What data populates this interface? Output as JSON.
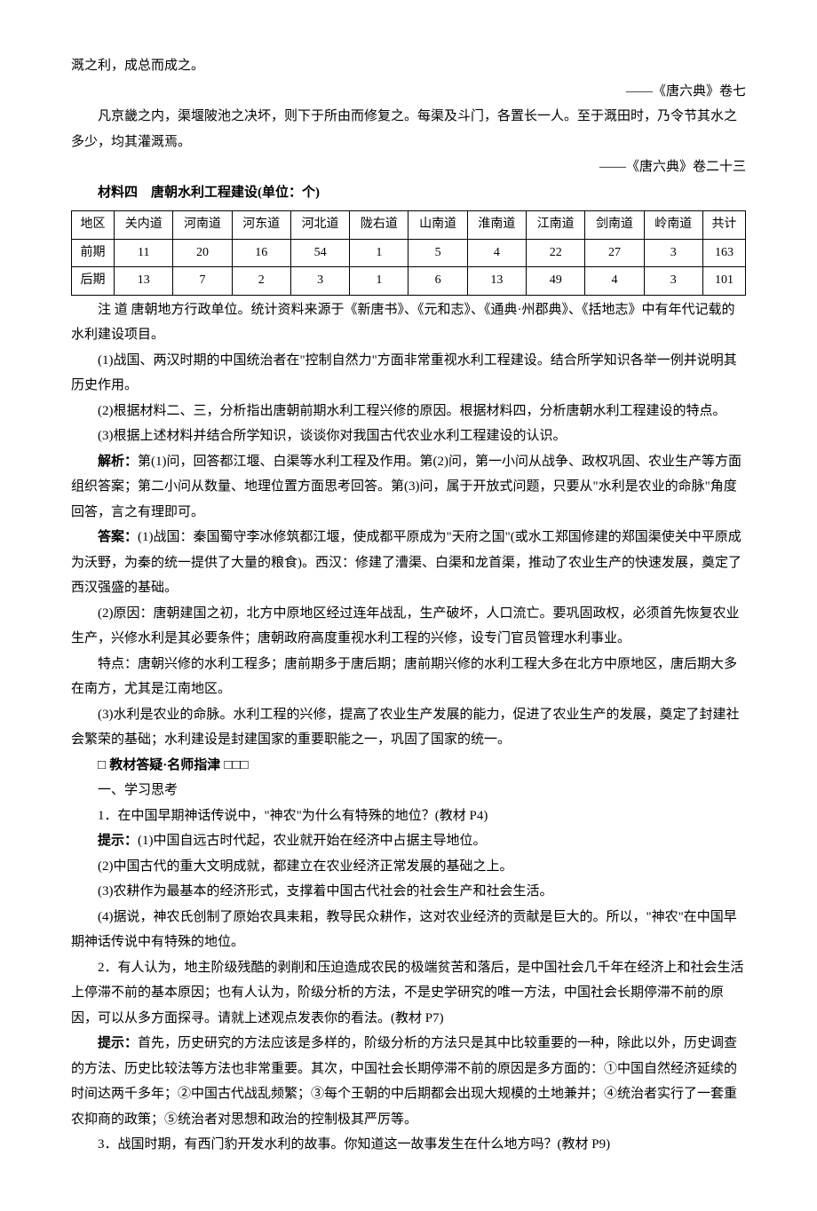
{
  "para1": "溉之利，成总而成之。",
  "cite1": "——《唐六典》卷七",
  "para2": "凡京畿之内，渠堰陂池之决坏，则下于所由而修复之。每渠及斗门，各置长一人。至于溉田时，乃令节其水之多少，均其灌溉焉。",
  "cite2": "——《唐六典》卷二十三",
  "mat4": "材料四　唐朝水利工程建设(单位：个)",
  "table": {
    "headers": [
      "地区",
      "关内道",
      "河南道",
      "河东道",
      "河北道",
      "陇右道",
      "山南道",
      "淮南道",
      "江南道",
      "剑南道",
      "岭南道",
      "共计"
    ],
    "row1": [
      "前期",
      "11",
      "20",
      "16",
      "54",
      "1",
      "5",
      "4",
      "22",
      "27",
      "3",
      "163"
    ],
    "row2": [
      "后期",
      "13",
      "7",
      "2",
      "3",
      "1",
      "6",
      "13",
      "49",
      "4",
      "3",
      "101"
    ]
  },
  "note": "注 道 唐朝地方行政单位。统计资料来源于《新唐书》、《元和志》、《通典·州郡典》、《括地志》中有年代记载的水利建设项目。",
  "q1": "(1)战国、两汉时期的中国统治者在\"控制自然力\"方面非常重视水利工程建设。结合所学知识各举一例并说明其历史作用。",
  "q2": "(2)根据材料二、三，分析指出唐朝前期水利工程兴修的原因。根据材料四，分析唐朝水利工程建设的特点。",
  "q3": "(3)根据上述材料并结合所学知识，谈谈你对我国古代农业水利工程建设的认识。",
  "jiexi_label": "解析：",
  "jiexi": "第(1)问，回答都江堰、白渠等水利工程及作用。第(2)问，第一小问从战争、政权巩固、农业生产等方面组织答案；第二小问从数量、地理位置方面思考回答。第(3)问，属于开放式问题，只要从\"水利是农业的命脉\"角度回答，言之有理即可。",
  "daan_label": "答案：",
  "a1": "(1)战国：秦国蜀守李冰修筑都江堰，使成都平原成为\"天府之国\"(或水工郑国修建的郑国渠使关中平原成为沃野，为秦的统一提供了大量的粮食)。西汉：修建了漕渠、白渠和龙首渠，推动了农业生产的快速发展，奠定了西汉强盛的基础。",
  "a2a": "(2)原因：唐朝建国之初，北方中原地区经过连年战乱，生产破坏，人口流亡。要巩固政权，必须首先恢复农业生产，兴修水利是其必要条件；唐朝政府高度重视水利工程的兴修，设专门官员管理水利事业。",
  "a2b": "特点：唐朝兴修的水利工程多；唐前期多于唐后期；唐前期兴修的水利工程大多在北方中原地区，唐后期大多在南方，尤其是江南地区。",
  "a3": "(3)水利是农业的命脉。水利工程的兴修，提高了农业生产发展的能力，促进了农业生产的发展，奠定了封建社会繁荣的基础；水利建设是封建国家的重要职能之一，巩固了国家的统一。",
  "section": "教材答疑·名师指津",
  "sub1": "一、学习思考",
  "t1q": "1．在中国早期神话传说中，\"神农\"为什么有特殊的地位？(教材 P4)",
  "tishi_label": "提示：",
  "t1a1": "(1)中国自远古时代起，农业就开始在经济中占据主导地位。",
  "t1a2": "(2)中国古代的重大文明成就，都建立在农业经济正常发展的基础之上。",
  "t1a3": "(3)农耕作为最基本的经济形式，支撑着中国古代社会的社会生产和社会生活。",
  "t1a4": "(4)据说，神农氏创制了原始农具耒耜，教导民众耕作，这对农业经济的贡献是巨大的。所以，\"神农\"在中国早期神话传说中有特殊的地位。",
  "t2q": "2．有人认为，地主阶级残酷的剥削和压迫造成农民的极端贫苦和落后，是中国社会几千年在经济上和社会生活上停滞不前的基本原因；也有人认为，阶级分析的方法，不是史学研究的唯一方法，中国社会长期停滞不前的原因，可以从多方面探寻。请就上述观点发表你的看法。(教材 P7)",
  "t2a": "首先，历史研究的方法应该是多样的，阶级分析的方法只是其中比较重要的一种，除此以外，历史调查的方法、历史比较法等方法也非常重要。其次，中国社会长期停滞不前的原因是多方面的：①中国自然经济延续的时间达两千多年；②中国古代战乱频繁；③每个王朝的中后期都会出现大规模的土地兼并；④统治者实行了一套重农抑商的政策；⑤统治者对思想和政治的控制极其严厉等。",
  "t3q": "3．战国时期，有西门豹开发水利的故事。你知道这一故事发生在什么地方吗？(教材 P9)"
}
